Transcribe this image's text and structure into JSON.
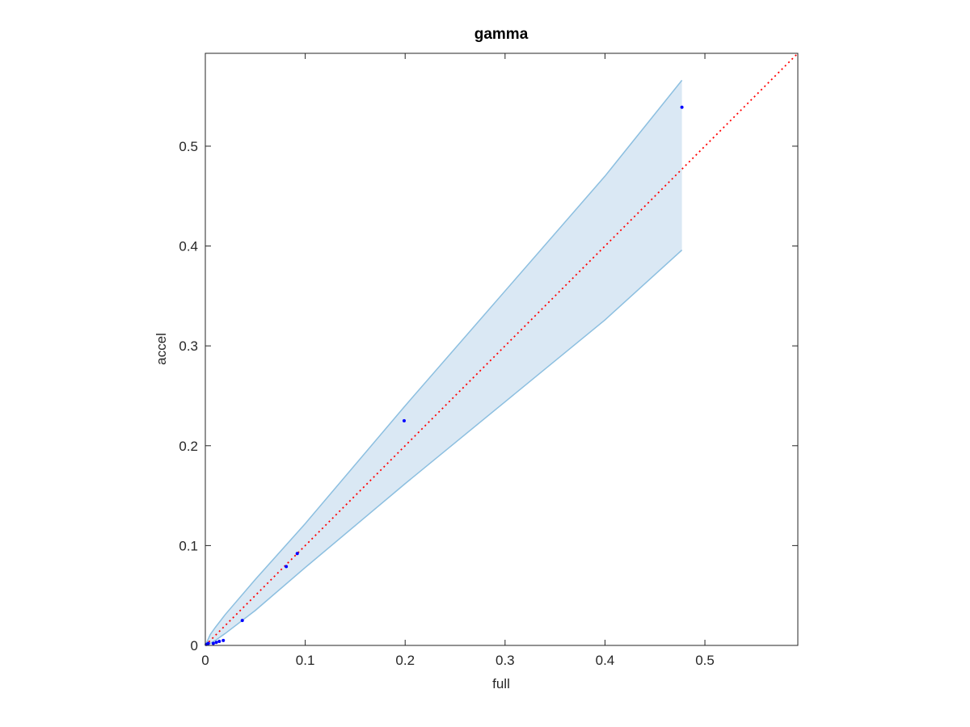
{
  "chart_data": {
    "type": "scatter",
    "title": "gamma",
    "x_label": "full",
    "y_label": "accel",
    "xlim": [
      0,
      0.593
    ],
    "ylim": [
      0,
      0.593
    ],
    "xticks": [
      0,
      0.1,
      0.2,
      0.3,
      0.4,
      0.5
    ],
    "yticks": [
      0,
      0.1,
      0.2,
      0.3,
      0.4,
      0.5
    ],
    "points": {
      "color": "#0000ff",
      "x": [
        0.001,
        0.003,
        0.008,
        0.011,
        0.014,
        0.018,
        0.037,
        0.081,
        0.092,
        0.199,
        0.477
      ],
      "y": [
        0.001,
        0.002,
        0.002,
        0.003,
        0.004,
        0.005,
        0.025,
        0.079,
        0.092,
        0.225,
        0.539
      ]
    },
    "band": {
      "color": "#8cbfe0",
      "fill": "#dae8f4",
      "x": [
        0,
        0.005,
        0.01,
        0.02,
        0.05,
        0.1,
        0.2,
        0.3,
        0.4,
        0.477
      ],
      "upper": [
        0,
        0.011,
        0.018,
        0.031,
        0.066,
        0.122,
        0.24,
        0.355,
        0.47,
        0.566
      ],
      "lower": [
        0,
        0.002,
        0.005,
        0.012,
        0.035,
        0.078,
        0.162,
        0.244,
        0.326,
        0.396
      ]
    },
    "reference_line": {
      "color": "#ff0000",
      "x": [
        0,
        0.593
      ],
      "y": [
        0,
        0.593
      ]
    }
  }
}
